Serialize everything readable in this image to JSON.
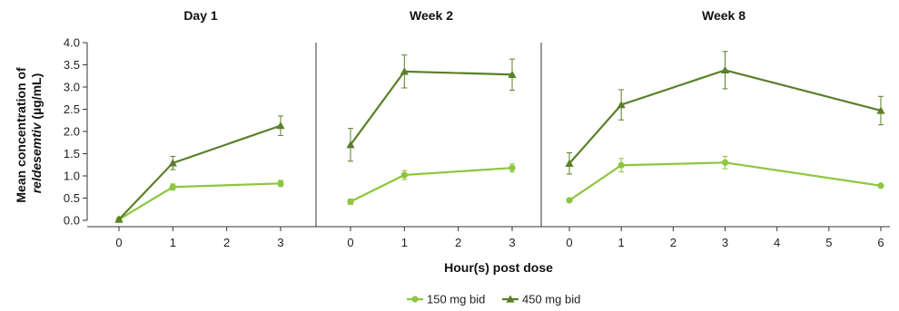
{
  "chart_data": {
    "type": "line",
    "xlabel": "Hour(s) post dose",
    "ylabel_line1": "Mean concentration of",
    "ylabel_line2_italic": "reldesemtiv",
    "ylabel_line2_rest": " (µg/mL)",
    "ylim": [
      0,
      4
    ],
    "yticks": [
      "0.0",
      "0.5",
      "1.0",
      "1.5",
      "2.0",
      "2.5",
      "3.0",
      "3.5",
      "4.0"
    ],
    "legend_position": "bottom-center",
    "series_style": [
      {
        "name": "150 mg bid",
        "color": "#8dc63f",
        "marker": "circle"
      },
      {
        "name": "450 mg bid",
        "color": "#5b7f2a",
        "marker": "triangle"
      }
    ],
    "panels": [
      {
        "title": "Day 1",
        "x": [
          0,
          1,
          2,
          3
        ],
        "xticks": [
          "0",
          "1",
          "2",
          "3"
        ],
        "series": [
          {
            "name": "150 mg bid",
            "points": [
              [
                0,
                0.02,
                0.0
              ],
              [
                1,
                0.75,
                0.07
              ],
              [
                3,
                0.83,
                0.07
              ]
            ]
          },
          {
            "name": "450 mg bid",
            "points": [
              [
                0,
                0.02,
                0.0
              ],
              [
                1,
                1.29,
                0.15
              ],
              [
                3,
                2.13,
                0.22
              ]
            ]
          }
        ]
      },
      {
        "title": "Week 2",
        "x": [
          0,
          1,
          2,
          3
        ],
        "xticks": [
          "0",
          "1",
          "2",
          "3"
        ],
        "series": [
          {
            "name": "150 mg bid",
            "points": [
              [
                0,
                0.42,
                0.06
              ],
              [
                1,
                1.02,
                0.1
              ],
              [
                3,
                1.18,
                0.09
              ]
            ]
          },
          {
            "name": "450 mg bid",
            "points": [
              [
                0,
                1.7,
                0.37
              ],
              [
                1,
                3.35,
                0.37
              ],
              [
                3,
                3.28,
                0.35
              ]
            ]
          }
        ]
      },
      {
        "title": "Week 8",
        "x": [
          0,
          1,
          2,
          3,
          4,
          5,
          6
        ],
        "xticks": [
          "0",
          "1",
          "2",
          "3",
          "4",
          "5",
          "6"
        ],
        "series": [
          {
            "name": "150 mg bid",
            "points": [
              [
                0,
                0.45,
                0.0
              ],
              [
                1,
                1.24,
                0.15
              ],
              [
                3,
                1.3,
                0.14
              ],
              [
                6,
                0.78,
                0.0
              ]
            ]
          },
          {
            "name": "450 mg bid",
            "points": [
              [
                0,
                1.28,
                0.24
              ],
              [
                1,
                2.6,
                0.34
              ],
              [
                3,
                3.38,
                0.42
              ],
              [
                6,
                2.47,
                0.32
              ]
            ]
          }
        ]
      }
    ]
  }
}
